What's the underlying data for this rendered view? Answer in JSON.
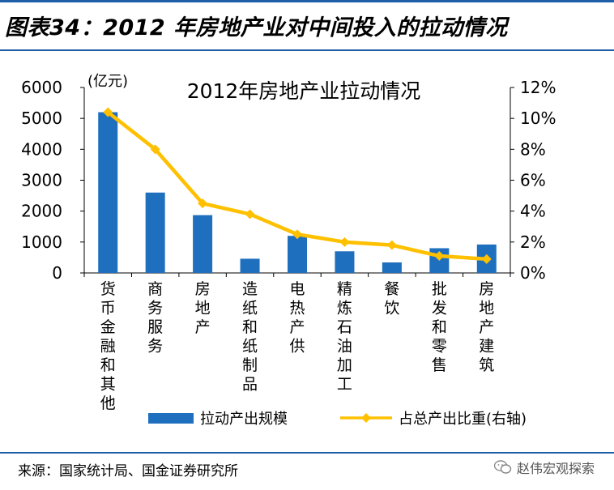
{
  "header": {
    "title": "图表34：2012 年房地产业对中间投入的拉动情况"
  },
  "chart_data": {
    "type": "bar",
    "title": "2012年房地产业拉动情况",
    "left_unit": "(亿元)",
    "categories": [
      "货币金融和其他",
      "商务服务",
      "房地产",
      "造纸和纸制品",
      "电热产供",
      "精炼石油加工",
      "餐饮",
      "批发和零售",
      "房地产建筑"
    ],
    "series": [
      {
        "name": "拉动产出规模",
        "type": "bar",
        "axis": "left",
        "color": "#1f6fbf",
        "values": [
          5200,
          2600,
          1870,
          460,
          1200,
          700,
          340,
          800,
          920
        ]
      },
      {
        "name": "占总产出比重(右轴)",
        "type": "line",
        "axis": "right",
        "color": "#ffc000",
        "values": [
          10.4,
          8.0,
          4.5,
          3.8,
          2.5,
          2.0,
          1.8,
          1.1,
          0.9
        ]
      }
    ],
    "ylim_left": [
      0,
      6000
    ],
    "yticks_left": [
      "0",
      "1000",
      "2000",
      "3000",
      "4000",
      "5000",
      "6000"
    ],
    "ylim_right": [
      0,
      12
    ],
    "yticks_right": [
      "0%",
      "2%",
      "4%",
      "6%",
      "8%",
      "10%",
      "12%"
    ],
    "grid": false,
    "legend_position": "bottom"
  },
  "source": {
    "text": "来源：国家统计局、国金证券研究所"
  },
  "watermark": {
    "text": "赵伟宏观探索"
  }
}
